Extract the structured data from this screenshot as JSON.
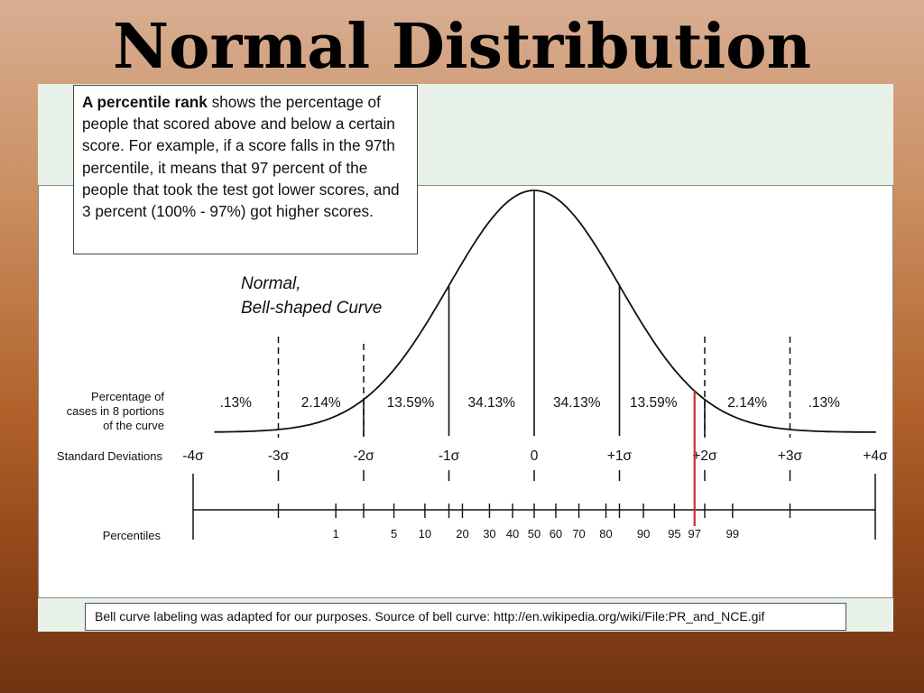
{
  "slide": {
    "title": "Normal Distribution"
  },
  "info_box": {
    "bold_lead": "A percentile rank",
    "text": " shows the percentage of people that scored above and below a certain score. For example, if a score falls in the 97th percentile, it means that 97 percent of the people that took the test got lower scores, and 3 percent (100% - 97%) got higher scores."
  },
  "curve_label": {
    "line1": "Normal,",
    "line2": "Bell-shaped Curve"
  },
  "row_labels": {
    "percentage_line1": "Percentage of",
    "percentage_line2": "cases in 8 portions",
    "percentage_line3": "of the curve",
    "standard_deviations": "Standard Deviations",
    "percentiles": "Percentiles"
  },
  "sd_labels": [
    "-4σ",
    "-3σ",
    "-2σ",
    "-1σ",
    "0",
    "+1σ",
    "+2σ",
    "+3σ",
    "+4σ"
  ],
  "portion_percentages": [
    ".13%",
    "2.14%",
    "13.59%",
    "34.13%",
    "34.13%",
    "13.59%",
    "2.14%",
    ".13%"
  ],
  "percentile_labels": [
    {
      "value": 1,
      "text": "1"
    },
    {
      "value": 5,
      "text": "5"
    },
    {
      "value": 10,
      "text": "10"
    },
    {
      "value": 20,
      "text": "20"
    },
    {
      "value": 30,
      "text": "30"
    },
    {
      "value": 40,
      "text": "40"
    },
    {
      "value": 50,
      "text": "50"
    },
    {
      "value": 60,
      "text": "60"
    },
    {
      "value": 70,
      "text": "70"
    },
    {
      "value": 80,
      "text": "80"
    },
    {
      "value": 90,
      "text": "90"
    },
    {
      "value": 95,
      "text": "95"
    },
    {
      "value": 97,
      "text": "97",
      "highlight": true
    },
    {
      "value": 99,
      "text": "99"
    }
  ],
  "highlight_color": "#d42a2a",
  "caption": "Bell curve labeling was adapted for our purposes.  Source of bell curve:  http://en.wikipedia.org/wiki/File:PR_and_NCE.gif"
}
